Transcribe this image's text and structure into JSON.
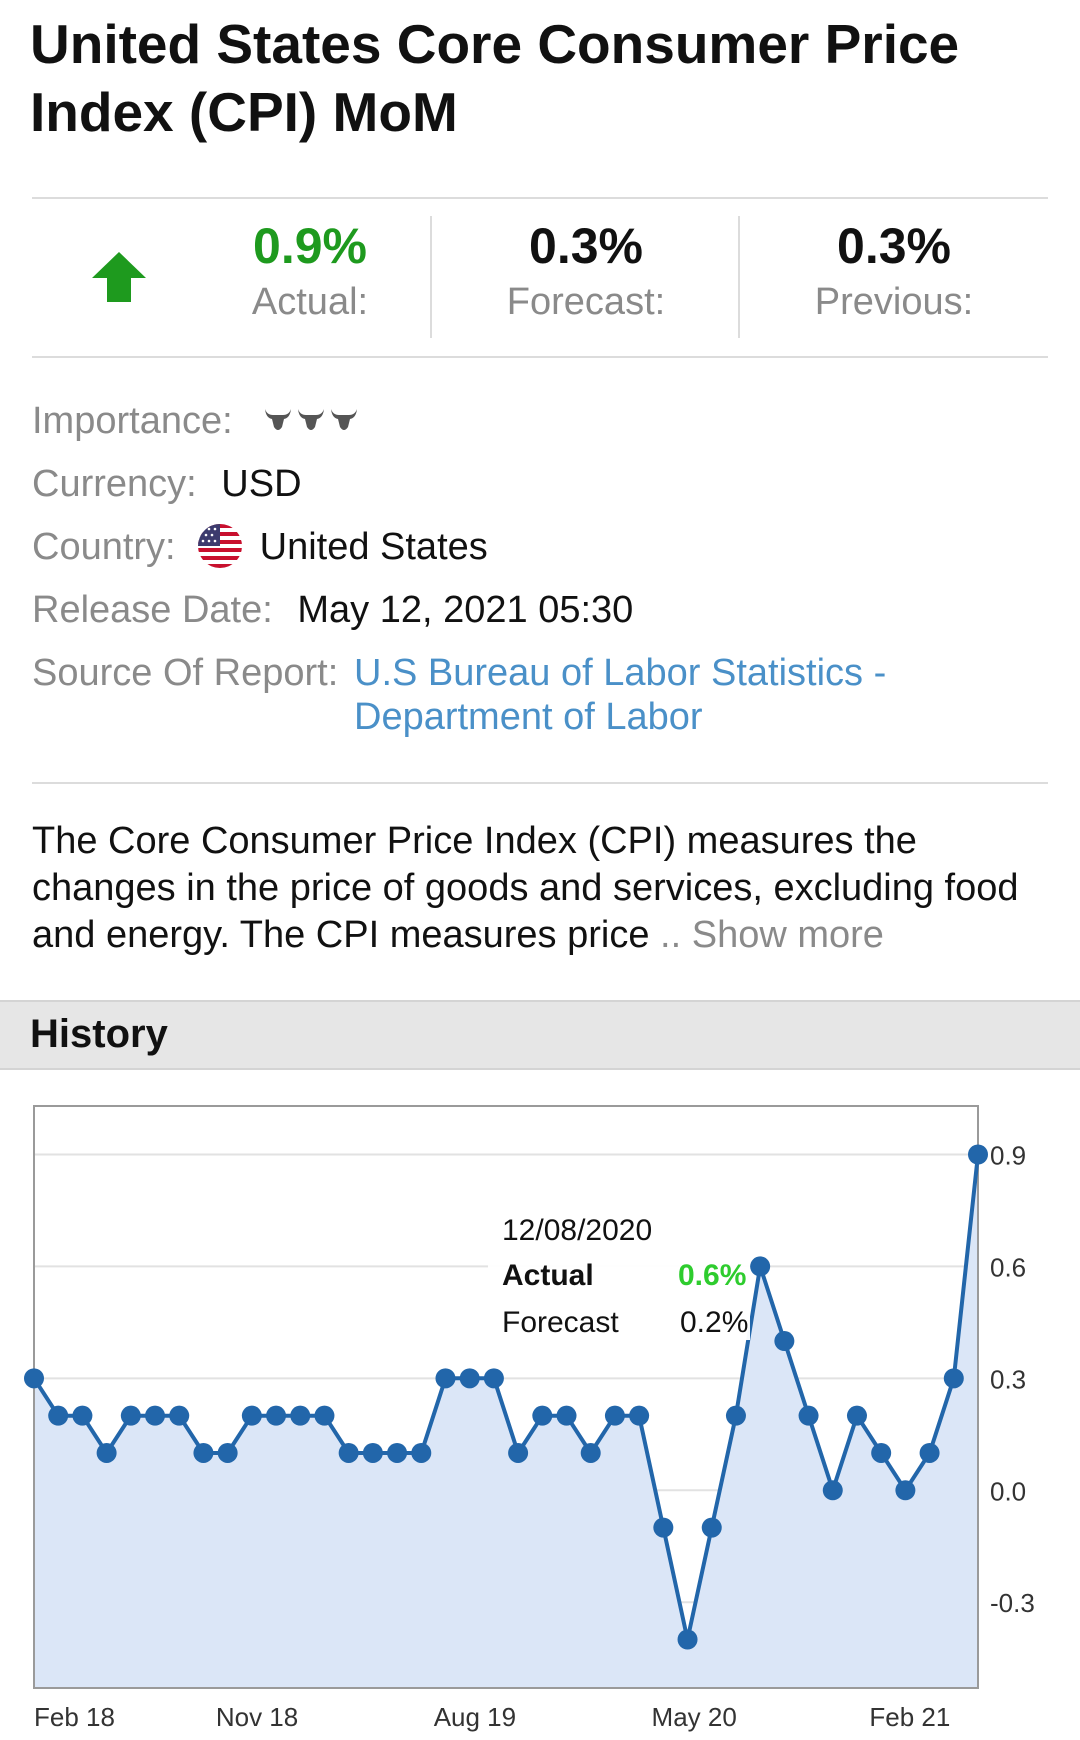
{
  "header": {
    "title": "United States Core Consumer Price Index (CPI) MoM"
  },
  "stats": {
    "direction_icon": "up-arrow-icon",
    "actual": {
      "value": "0.9%",
      "label": "Actual:"
    },
    "forecast": {
      "value": "0.3%",
      "label": "Forecast:"
    },
    "previous": {
      "value": "0.3%",
      "label": "Previous:"
    }
  },
  "info": {
    "importance_label": "Importance:",
    "importance_level": 3,
    "currency_label": "Currency:",
    "currency_value": "USD",
    "country_label": "Country:",
    "country_value": "United States",
    "release_label": "Release Date:",
    "release_value": "May 12, 2021 05:30",
    "source_label": "Source Of Report:",
    "source_line1": "U.S Bureau of Labor Statistics -",
    "source_line2": "Department of Labor"
  },
  "description": {
    "text": "The Core Consumer Price Index (CPI) measures the changes in the price of goods and services, excluding food and energy. The CPI measures price",
    "ellipsis": "..",
    "show_more": "Show more"
  },
  "history": {
    "title": "History"
  },
  "colors": {
    "positive": "#1e9a1e",
    "link": "#4a90c8",
    "line": "#2266aa",
    "area": "#dbe6f7",
    "tooltip_actual": "#2ecc2e"
  },
  "chart_data": {
    "type": "line",
    "x_tick_labels": [
      "Feb 18",
      "Nov 18",
      "Aug 19",
      "May 20",
      "Feb 21"
    ],
    "y_tick_labels": [
      "0.9",
      "0.6",
      "0.3",
      "0.0",
      "-0.3"
    ],
    "y_ticks": [
      0.9,
      0.6,
      0.3,
      0.0,
      -0.3
    ],
    "ylim": [
      -0.53,
      1.03
    ],
    "grid": true,
    "values": [
      0.3,
      0.2,
      0.2,
      0.1,
      0.2,
      0.2,
      0.2,
      0.1,
      0.1,
      0.2,
      0.2,
      0.2,
      0.2,
      0.1,
      0.1,
      0.1,
      0.1,
      0.3,
      0.3,
      0.3,
      0.1,
      0.2,
      0.2,
      0.1,
      0.2,
      0.2,
      -0.1,
      -0.4,
      -0.1,
      0.2,
      0.6,
      0.4,
      0.2,
      0.0,
      0.2,
      0.1,
      0.0,
      0.1,
      0.3,
      0.9
    ],
    "tooltip": {
      "date": "12/08/2020",
      "actual_label": "Actual",
      "actual_value": "0.6%",
      "forecast_label": "Forecast",
      "forecast_value": "0.2%"
    }
  }
}
